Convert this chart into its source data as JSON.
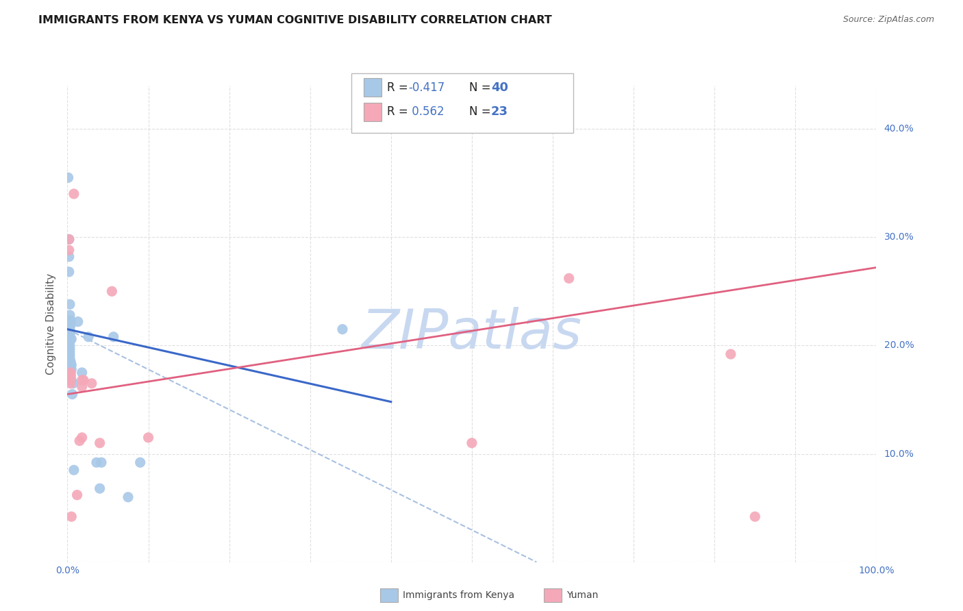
{
  "title": "IMMIGRANTS FROM KENYA VS YUMAN COGNITIVE DISABILITY CORRELATION CHART",
  "source": "Source: ZipAtlas.com",
  "ylabel": "Cognitive Disability",
  "xlim": [
    0,
    1.0
  ],
  "ylim": [
    0,
    0.44
  ],
  "xticks": [
    0.0,
    0.1,
    0.2,
    0.3,
    0.4,
    0.5,
    0.6,
    0.7,
    0.8,
    0.9,
    1.0
  ],
  "xtick_labels": [
    "0.0%",
    "",
    "",
    "",
    "",
    "",
    "",
    "",
    "",
    "",
    "100.0%"
  ],
  "yticks": [
    0.0,
    0.1,
    0.2,
    0.3,
    0.4
  ],
  "ytick_labels": [
    "",
    "10.0%",
    "20.0%",
    "30.0%",
    "40.0%"
  ],
  "blue_color": "#a8c8e8",
  "pink_color": "#f4a8b8",
  "blue_line_color": "#3a68c8",
  "pink_line_color": "#e06080",
  "dashed_line_color": "#a8c0e0",
  "watermark": "ZIPatlas",
  "watermark_color": "#c8d8f0",
  "blue_dots": [
    [
      0.001,
      0.355
    ],
    [
      0.002,
      0.298
    ],
    [
      0.002,
      0.282
    ],
    [
      0.002,
      0.268
    ],
    [
      0.003,
      0.238
    ],
    [
      0.003,
      0.228
    ],
    [
      0.003,
      0.22
    ],
    [
      0.003,
      0.215
    ],
    [
      0.003,
      0.213
    ],
    [
      0.003,
      0.21
    ],
    [
      0.003,
      0.207
    ],
    [
      0.003,
      0.204
    ],
    [
      0.003,
      0.2
    ],
    [
      0.003,
      0.197
    ],
    [
      0.003,
      0.194
    ],
    [
      0.003,
      0.191
    ],
    [
      0.003,
      0.188
    ],
    [
      0.004,
      0.223
    ],
    [
      0.004,
      0.219
    ],
    [
      0.004,
      0.185
    ],
    [
      0.004,
      0.18
    ],
    [
      0.004,
      0.175
    ],
    [
      0.004,
      0.172
    ],
    [
      0.005,
      0.206
    ],
    [
      0.005,
      0.182
    ],
    [
      0.005,
      0.178
    ],
    [
      0.005,
      0.168
    ],
    [
      0.006,
      0.155
    ],
    [
      0.007,
      0.165
    ],
    [
      0.008,
      0.085
    ],
    [
      0.013,
      0.222
    ],
    [
      0.018,
      0.175
    ],
    [
      0.026,
      0.208
    ],
    [
      0.036,
      0.092
    ],
    [
      0.04,
      0.068
    ],
    [
      0.042,
      0.092
    ],
    [
      0.057,
      0.208
    ],
    [
      0.34,
      0.215
    ],
    [
      0.09,
      0.092
    ],
    [
      0.075,
      0.06
    ]
  ],
  "pink_dots": [
    [
      0.002,
      0.298
    ],
    [
      0.002,
      0.288
    ],
    [
      0.003,
      0.172
    ],
    [
      0.003,
      0.168
    ],
    [
      0.004,
      0.175
    ],
    [
      0.004,
      0.172
    ],
    [
      0.004,
      0.165
    ],
    [
      0.005,
      0.042
    ],
    [
      0.008,
      0.34
    ],
    [
      0.012,
      0.062
    ],
    [
      0.015,
      0.112
    ],
    [
      0.018,
      0.168
    ],
    [
      0.018,
      0.162
    ],
    [
      0.018,
      0.115
    ],
    [
      0.02,
      0.168
    ],
    [
      0.03,
      0.165
    ],
    [
      0.04,
      0.11
    ],
    [
      0.055,
      0.25
    ],
    [
      0.1,
      0.115
    ],
    [
      0.5,
      0.11
    ],
    [
      0.62,
      0.262
    ],
    [
      0.82,
      0.192
    ],
    [
      0.85,
      0.042
    ]
  ],
  "blue_line_x": [
    0.0,
    0.4
  ],
  "blue_line_y": [
    0.215,
    0.148
  ],
  "pink_line_x": [
    0.0,
    1.0
  ],
  "pink_line_y": [
    0.155,
    0.272
  ],
  "dashed_line_x": [
    0.0,
    0.58
  ],
  "dashed_line_y": [
    0.215,
    0.0
  ],
  "background_color": "#ffffff",
  "grid_color": "#d8d8d8"
}
